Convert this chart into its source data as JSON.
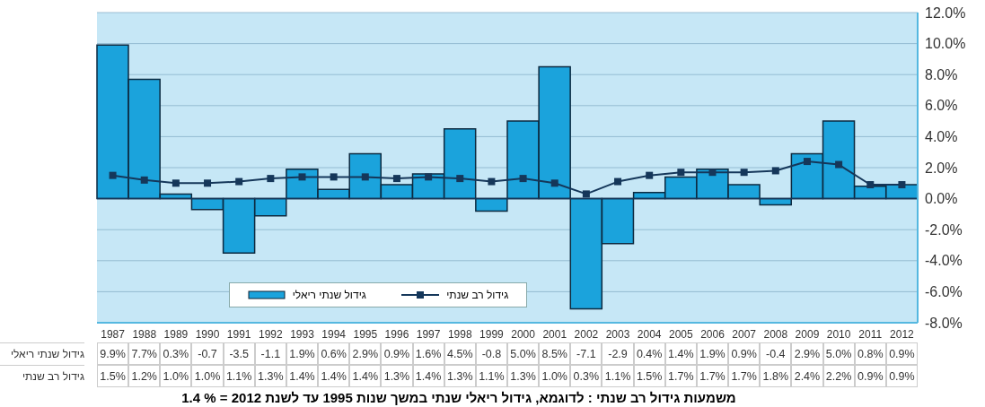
{
  "chart_data": {
    "type": "bar",
    "categories": [
      "1987",
      "1988",
      "1989",
      "1990",
      "1991",
      "1992",
      "1993",
      "1994",
      "1995",
      "1996",
      "1997",
      "1998",
      "1999",
      "2000",
      "2001",
      "2002",
      "2003",
      "2004",
      "2005",
      "2006",
      "2007",
      "2008",
      "2009",
      "2010",
      "2011",
      "2012"
    ],
    "series": [
      {
        "name": "גידול שנתי ריאלי",
        "color": "#1ba3dc",
        "values": [
          9.9,
          7.7,
          0.3,
          -0.7,
          -3.5,
          -1.1,
          1.9,
          0.6,
          2.9,
          0.9,
          1.6,
          4.5,
          -0.8,
          5.0,
          8.5,
          -7.1,
          -2.9,
          0.4,
          1.4,
          1.9,
          0.9,
          -0.4,
          2.9,
          5.0,
          0.8,
          0.9
        ],
        "value_labels": [
          "9.9%",
          "7.7%",
          "0.3%",
          "-0.7",
          "-3.5",
          "-1.1",
          "1.9%",
          "0.6%",
          "2.9%",
          "0.9%",
          "1.6%",
          "4.5%",
          "-0.8",
          "5.0%",
          "8.5%",
          "-7.1",
          "-2.9",
          "0.4%",
          "1.4%",
          "1.9%",
          "0.9%",
          "-0.4",
          "2.9%",
          "5.0%",
          "0.8%",
          "0.9%"
        ]
      },
      {
        "name": "גידול רב שנתי",
        "type": "line",
        "color": "#15375a",
        "values": [
          1.5,
          1.2,
          1.0,
          1.0,
          1.1,
          1.3,
          1.4,
          1.4,
          1.4,
          1.3,
          1.4,
          1.3,
          1.1,
          1.3,
          1.0,
          0.3,
          1.1,
          1.5,
          1.7,
          1.7,
          1.7,
          1.8,
          2.4,
          2.2,
          0.9,
          0.9
        ],
        "value_labels": [
          "1.5%",
          "1.2%",
          "1.0%",
          "1.0%",
          "1.1%",
          "1.3%",
          "1.4%",
          "1.4%",
          "1.4%",
          "1.3%",
          "1.4%",
          "1.3%",
          "1.1%",
          "1.3%",
          "1.0%",
          "0.3%",
          "1.1%",
          "1.5%",
          "1.7%",
          "1.7%",
          "1.7%",
          "1.8%",
          "2.4%",
          "2.2%",
          "0.9%",
          "0.9%"
        ]
      }
    ],
    "ylim": [
      -8,
      12
    ],
    "yticks": [
      {
        "value": -8,
        "label": "-8.0%"
      },
      {
        "value": -6,
        "label": "-6.0%"
      },
      {
        "value": -4,
        "label": "-4.0%"
      },
      {
        "value": -2,
        "label": "-2.0%"
      },
      {
        "value": 0,
        "label": "0.0%"
      },
      {
        "value": 2,
        "label": "2.0%"
      },
      {
        "value": 4,
        "label": "4.0%"
      },
      {
        "value": 6,
        "label": "6.0%"
      },
      {
        "value": 8,
        "label": "8.0%"
      },
      {
        "value": 10,
        "label": "10.0%"
      },
      {
        "value": 12,
        "label": "12.0%"
      }
    ],
    "grid": "y",
    "legend": "bottom",
    "marker": "square",
    "line_style": "solid",
    "annotations": [
      "משמעות גידול רב שנתי : לדוגמא, גידול ריאלי שנתי במשך שנות 1995 עד לשנת 2012  =  % 1.4"
    ]
  }
}
